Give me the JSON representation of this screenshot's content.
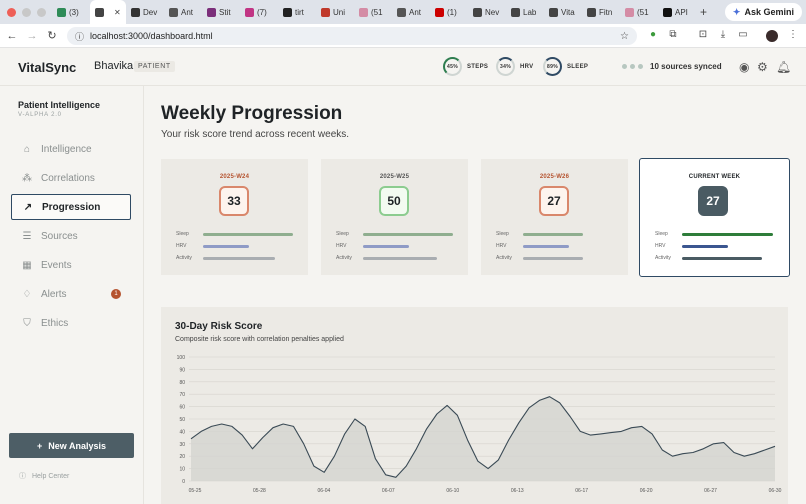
{
  "browser": {
    "tabs": [
      {
        "label": "(3)",
        "color": "#2e8b57"
      },
      {
        "label": "",
        "color": "#444444"
      },
      {
        "label": "Dev",
        "color": "#333333"
      },
      {
        "label": "Ant",
        "color": "#555555"
      },
      {
        "label": "Stit",
        "color": "#7b2f7a"
      },
      {
        "label": "(7)",
        "color": "#c13584"
      },
      {
        "label": "tirt",
        "color": "#222222"
      },
      {
        "label": "Uni",
        "color": "#c0392b"
      },
      {
        "label": "(51",
        "color": "#d48ca5"
      },
      {
        "label": "Ant",
        "color": "#555555"
      },
      {
        "label": "(1)",
        "color": "#cc0000"
      },
      {
        "label": "Nev",
        "color": "#444444"
      },
      {
        "label": "Lab",
        "color": "#444444"
      },
      {
        "label": "Vita",
        "color": "#444444"
      },
      {
        "label": "Fitn",
        "color": "#444444"
      },
      {
        "label": "(51",
        "color": "#d48ca5"
      },
      {
        "label": "API",
        "color": "#111111"
      }
    ],
    "gemini_label": "Ask Gemini",
    "url": "localhost:3000/dashboard.html"
  },
  "topbar": {
    "brand": "VitalSync",
    "patient_name": "Bhavika",
    "patient_tag": "PATIENT",
    "metrics": [
      {
        "value": "45%",
        "label": "STEPS"
      },
      {
        "value": "34%",
        "label": "HRV"
      },
      {
        "value": "89%",
        "label": "SLEEP"
      }
    ],
    "sync_text": "10 sources synced"
  },
  "sidebar": {
    "title": "Patient Intelligence",
    "version": "V-ALPHA 2.0",
    "items": [
      {
        "label": "Intelligence",
        "icon": "brain-icon"
      },
      {
        "label": "Correlations",
        "icon": "network-icon"
      },
      {
        "label": "Progression",
        "icon": "trend-icon",
        "active": true
      },
      {
        "label": "Sources",
        "icon": "database-icon"
      },
      {
        "label": "Events",
        "icon": "calendar-icon"
      },
      {
        "label": "Alerts",
        "icon": "bell-icon",
        "badge": "1"
      },
      {
        "label": "Ethics",
        "icon": "shield-icon"
      }
    ],
    "new_analysis": "New Analysis",
    "help": "Help Center"
  },
  "main": {
    "title": "Weekly Progression",
    "subtitle": "Your risk score trend across recent weeks.",
    "weeks": [
      {
        "label": "2025-W24",
        "score": "33",
        "sleep": 0.75,
        "hrv": 0.38,
        "activity": 0.6
      },
      {
        "label": "2025-W25",
        "score": "50",
        "sleep": 0.75,
        "hrv": 0.38,
        "activity": 0.62
      },
      {
        "label": "2025-W26",
        "score": "27",
        "sleep": 0.5,
        "hrv": 0.38,
        "activity": 0.5
      },
      {
        "label": "CURRENT WEEK",
        "score": "27",
        "sleep": 0.76,
        "hrv": 0.38,
        "activity": 0.67
      }
    ],
    "bar_labels": {
      "sleep": "Sleep",
      "hrv": "HRV",
      "activity": "Activity"
    },
    "chart_title": "30-Day Risk Score",
    "chart_subtitle": "Composite risk score with correlation penalties applied"
  },
  "chart_data": {
    "type": "area",
    "title": "30-Day Risk Score",
    "subtitle": "Composite risk score with correlation penalties applied",
    "ylim": [
      0,
      100
    ],
    "yticks": [
      0,
      10,
      20,
      30,
      40,
      50,
      60,
      70,
      80,
      90,
      100
    ],
    "xtick_labels": [
      "05-25",
      "05-28",
      "06-04",
      "06-07",
      "06-10",
      "06-13",
      "06-17",
      "06-20",
      "06-27",
      "06-30"
    ],
    "series": [
      {
        "values": [
          34,
          40,
          44,
          46,
          44,
          37,
          26,
          35,
          43,
          46,
          44,
          30,
          12,
          7,
          20,
          38,
          50,
          44,
          18,
          5,
          3,
          12,
          26,
          42,
          54,
          61,
          53,
          33,
          16,
          10,
          17,
          33,
          47,
          59,
          65,
          68,
          63,
          52,
          40,
          37,
          38,
          39,
          40,
          43,
          44,
          38,
          25,
          20,
          22,
          23,
          26,
          30,
          31,
          23,
          20,
          22,
          25,
          28
        ]
      }
    ],
    "grid": true
  }
}
